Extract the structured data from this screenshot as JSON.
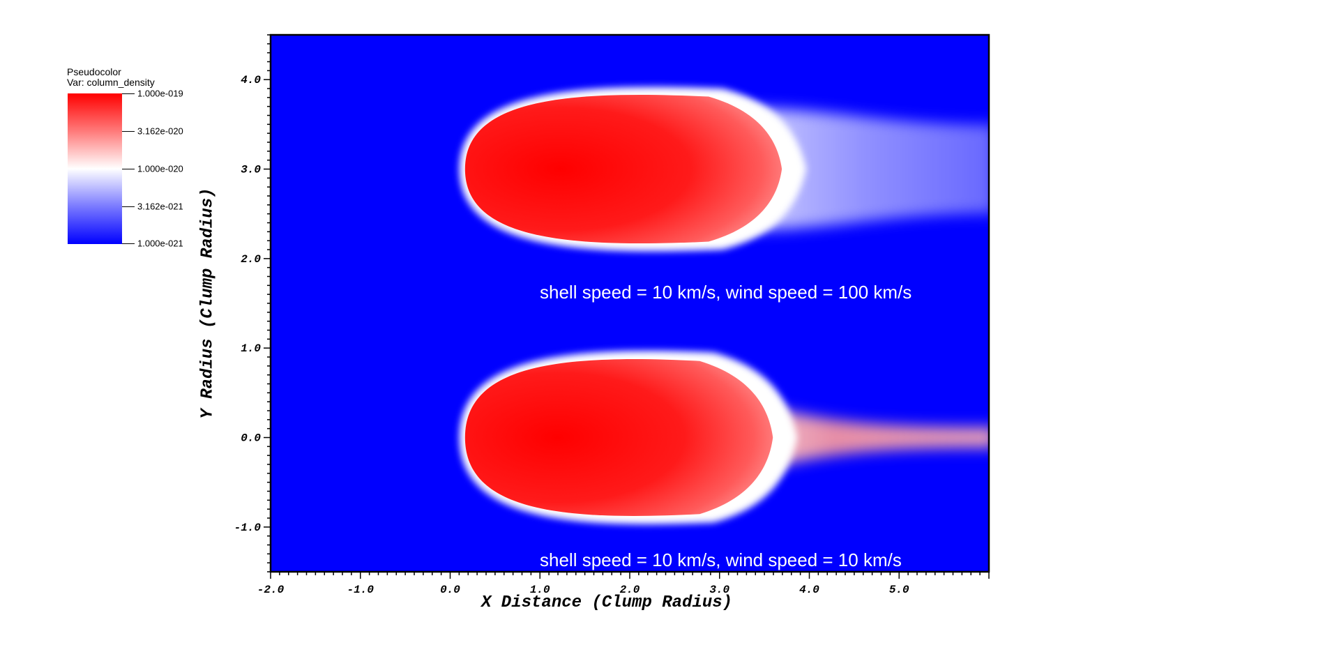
{
  "chart_data": {
    "type": "heatmap",
    "title": "",
    "legend": {
      "title": "Pseudocolor",
      "variable": "Var: column_density",
      "placement": "top-left",
      "ticks": [
        "1.000e-019",
        "3.162e-020",
        "1.000e-020",
        "3.162e-021",
        "1.000e-021"
      ],
      "scale": "log",
      "range": [
        1e-21,
        1e-19
      ],
      "colors": [
        "#ff0000",
        "#ffffff",
        "#0000ff"
      ]
    },
    "xlabel": "X Distance (Clump Radius)",
    "ylabel": "Y Radius (Clump Radius)",
    "xlim": [
      -2.0,
      6.0
    ],
    "ylim": [
      -1.5,
      4.5
    ],
    "xticks": [
      "-2.0",
      "-1.0",
      "0.0",
      "1.0",
      "2.0",
      "3.0",
      "4.0",
      "5.0"
    ],
    "yticks": [
      "-1.0",
      "0.0",
      "1.0",
      "2.0",
      "3.0",
      "4.0"
    ],
    "background_color": "#0000ff",
    "annotations": [
      "shell speed = 10 km/s, wind speed = 100 km/s",
      "shell speed = 10 km/s, wind speed = 10 km/s"
    ],
    "clumps": [
      {
        "center_y": 3.0,
        "head_x": 0.15,
        "core_end_x": 3.5,
        "half_height": 0.9,
        "tail_end_x": 6.0
      },
      {
        "center_y": 0.0,
        "head_x": 0.15,
        "core_end_x": 3.4,
        "half_height": 0.95,
        "tail_end_x": 6.0
      }
    ]
  }
}
